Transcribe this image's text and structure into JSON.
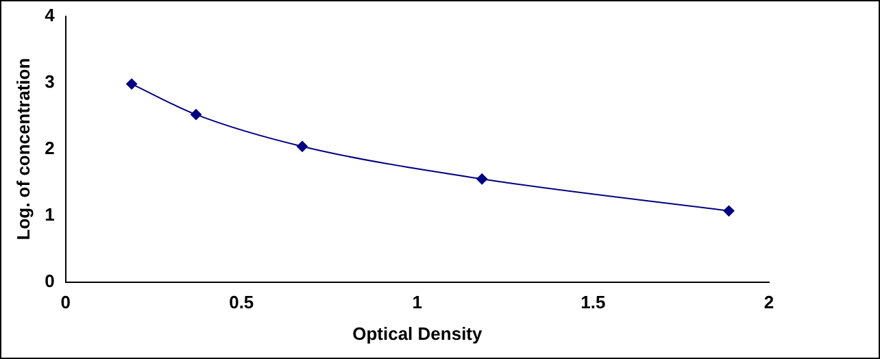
{
  "chart_data": {
    "type": "line",
    "xlabel": "Optical Density",
    "ylabel": "Log. of concentration",
    "x": [
      0.188,
      0.371,
      0.673,
      1.184,
      1.886
    ],
    "series": [
      {
        "color": "#000080",
        "values": [
          2.98,
          2.52,
          2.04,
          1.55,
          1.07
        ]
      }
    ],
    "xlim": [
      0,
      2
    ],
    "xticks": [
      0,
      0.5,
      1,
      1.5,
      2
    ],
    "ylim": [
      0,
      4
    ],
    "yticks": [
      0,
      1,
      2,
      3,
      4
    ],
    "grid": false,
    "legend": false,
    "marker": "diamond",
    "line_style": "solid"
  }
}
